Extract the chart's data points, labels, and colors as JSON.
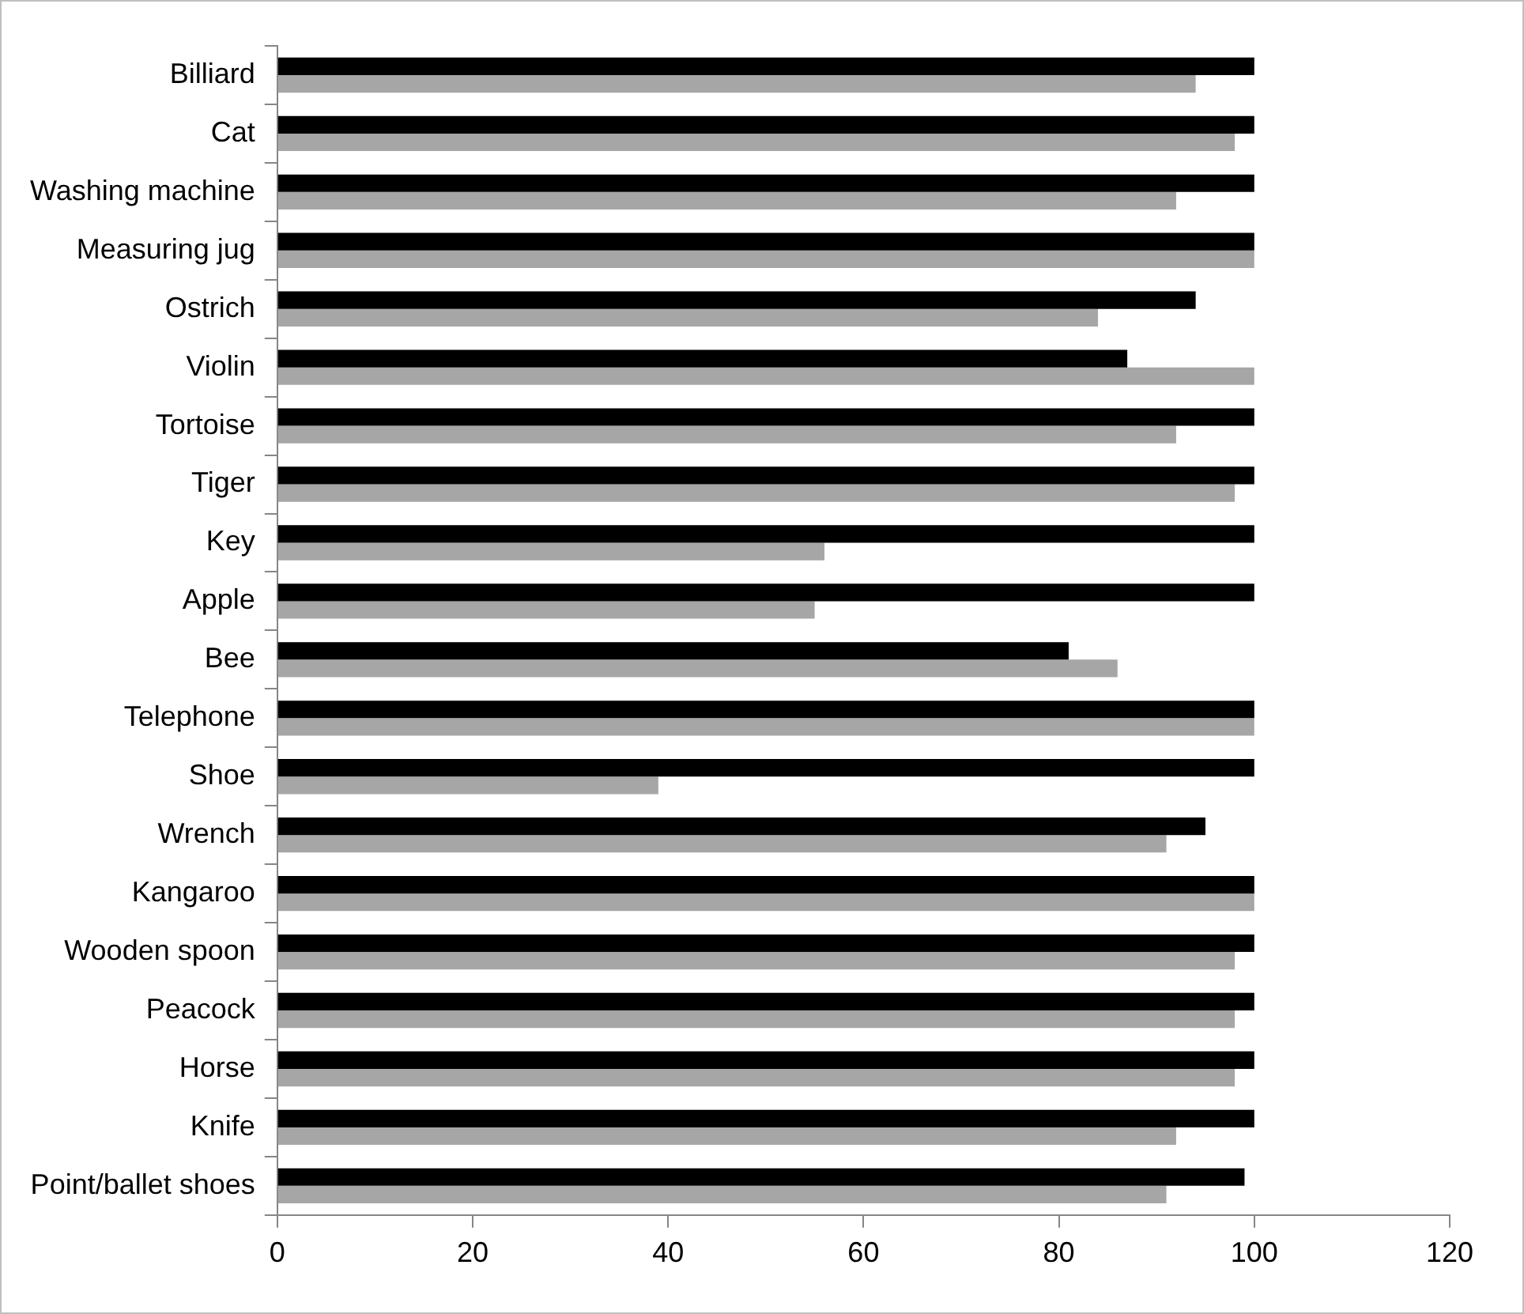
{
  "chart_data": {
    "type": "bar",
    "orientation": "horizontal",
    "categories": [
      "Billiard",
      "Cat",
      "Washing machine",
      "Measuring jug",
      "Ostrich",
      "Violin",
      "Tortoise",
      "Tiger",
      "Key",
      "Apple",
      "Bee",
      "Telephone",
      "Shoe",
      "Wrench",
      "Kangaroo",
      "Wooden spoon",
      "Peacock",
      "Horse",
      "Knife",
      "Point/ballet shoes"
    ],
    "series": [
      {
        "color": "#000000",
        "values": [
          100,
          100,
          100,
          100,
          94,
          87,
          100,
          100,
          100,
          100,
          81,
          100,
          100,
          95,
          100,
          100,
          100,
          100,
          100,
          99
        ]
      },
      {
        "color": "#a6a6a6",
        "values": [
          94,
          98,
          92,
          100,
          84,
          100,
          92,
          98,
          56,
          55,
          86,
          100,
          39,
          91,
          100,
          98,
          98,
          98,
          92,
          91
        ]
      }
    ],
    "xlim": [
      0,
      120
    ],
    "xticks": [
      0,
      20,
      40,
      60,
      80,
      100,
      120
    ],
    "grid": false,
    "legend": false
  }
}
